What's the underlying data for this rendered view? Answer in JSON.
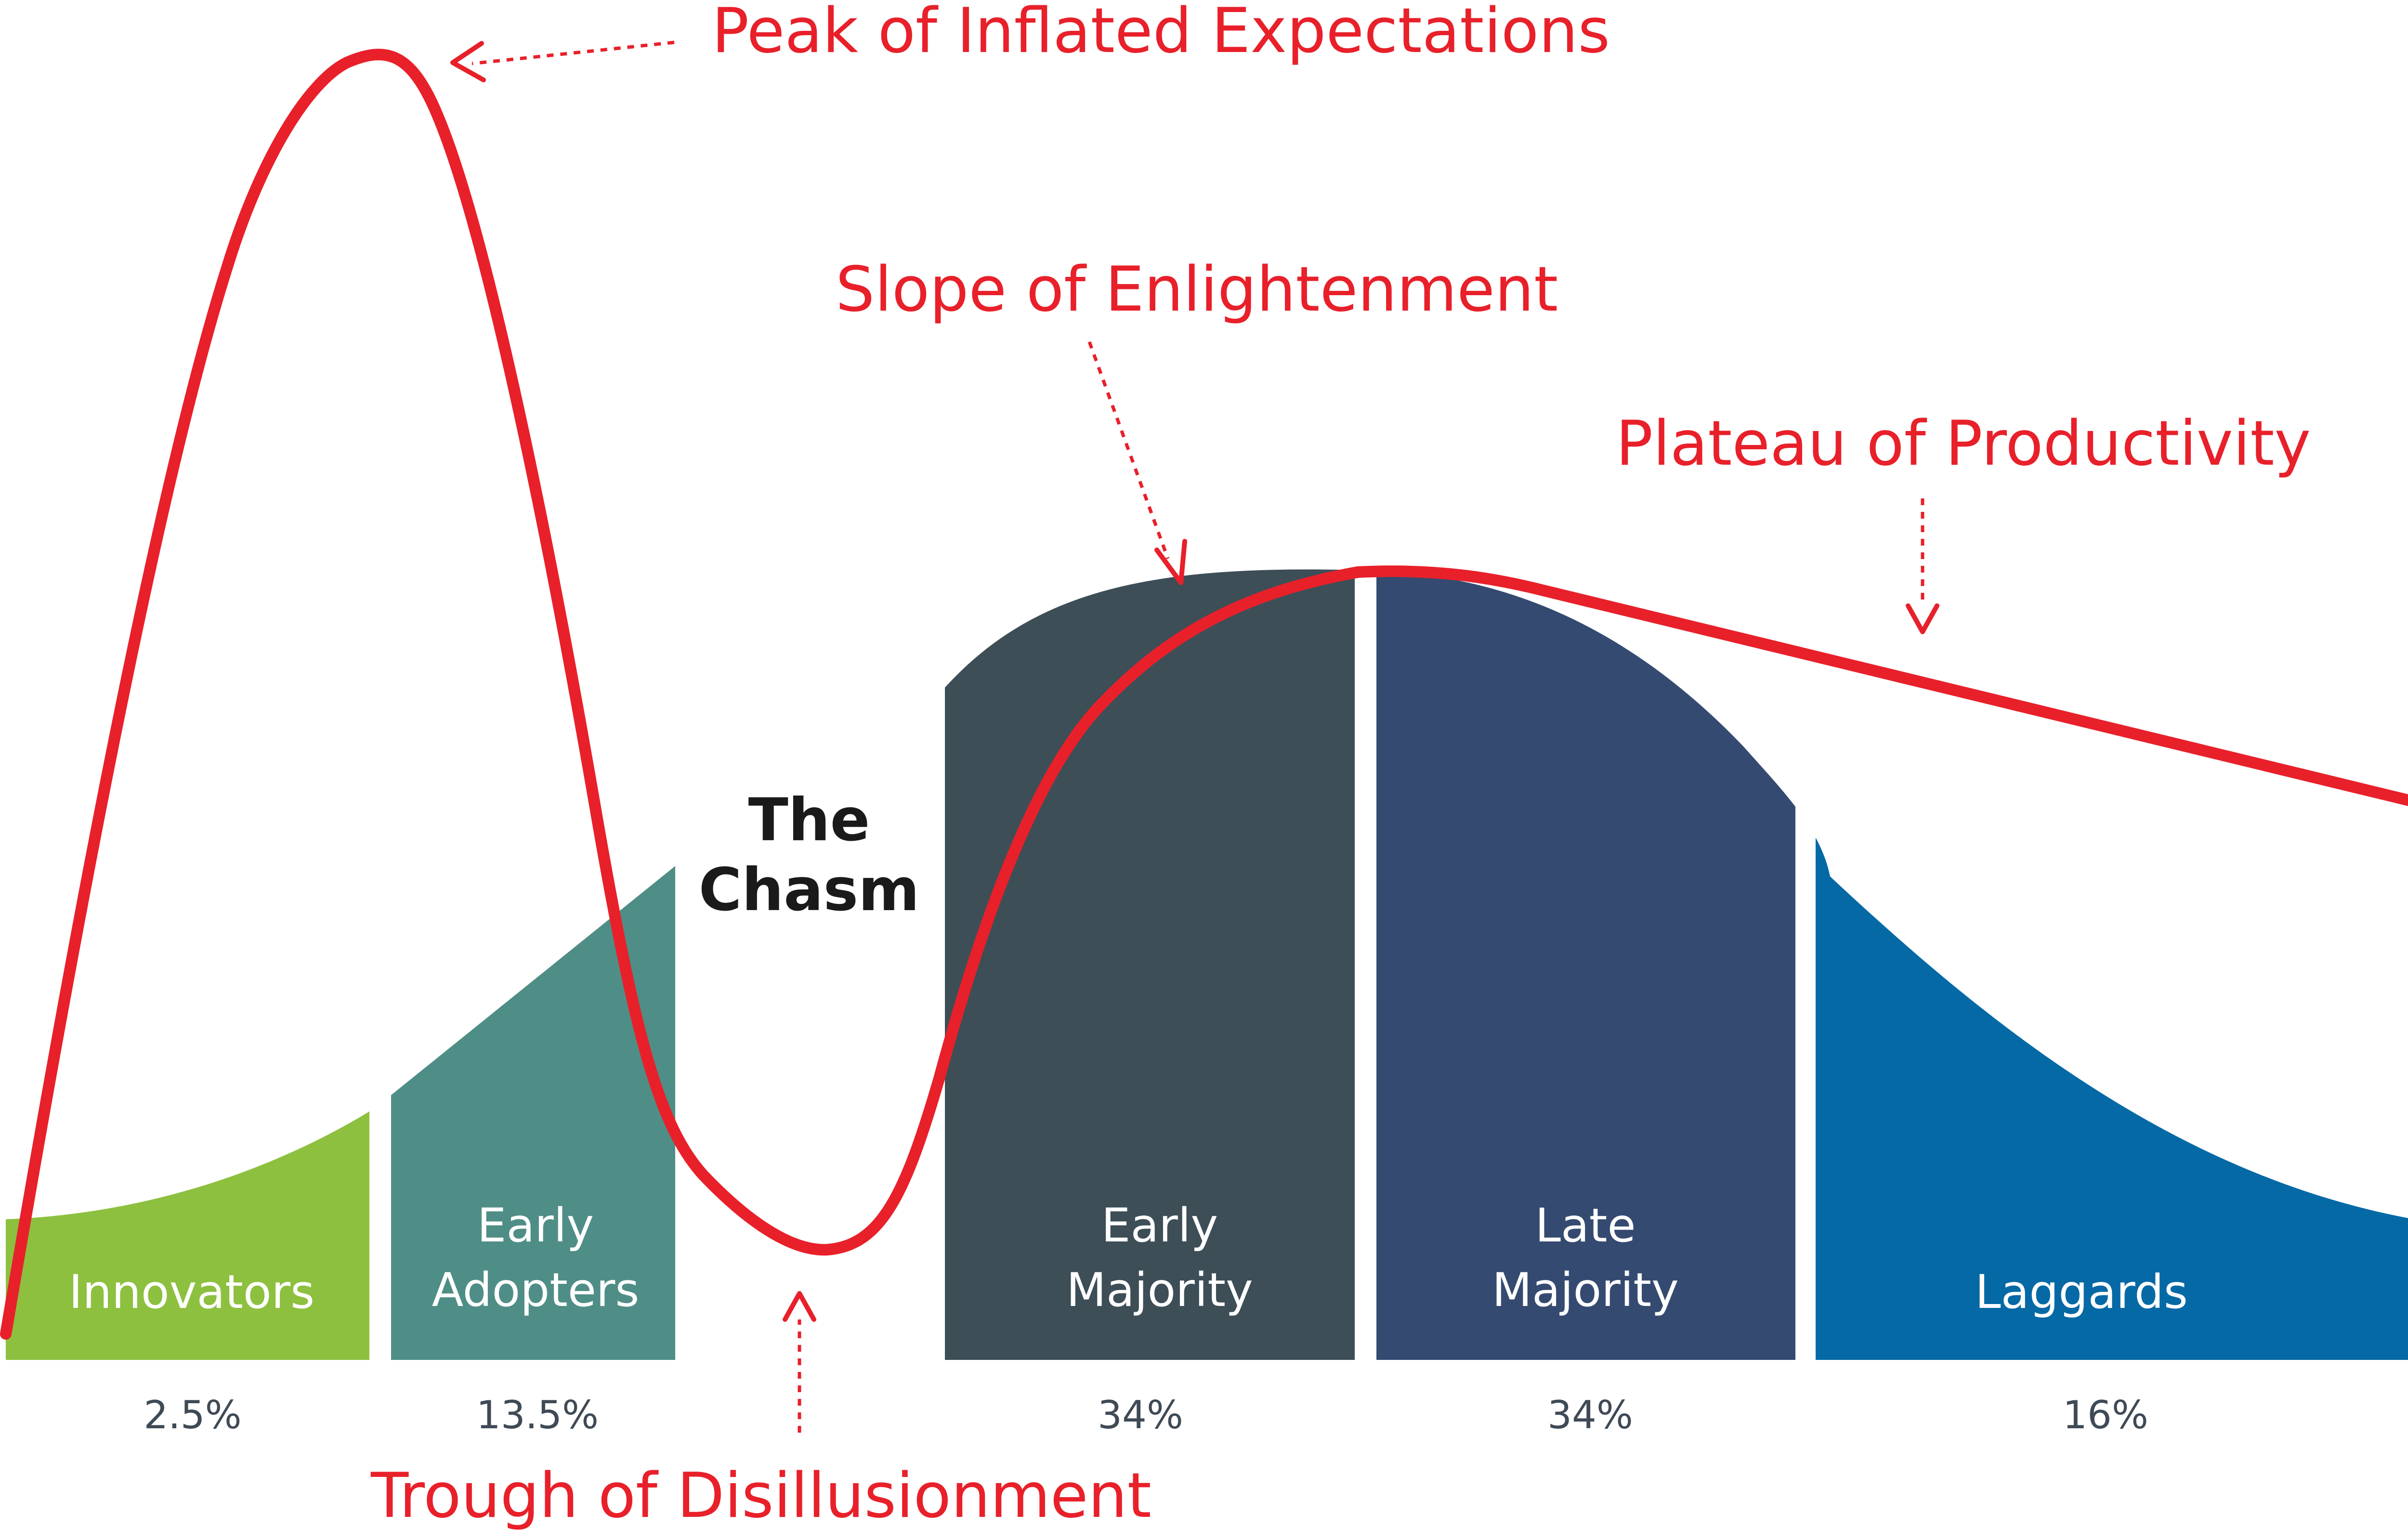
{
  "colors": {
    "innovators": "#8dc03f",
    "early_adopters": "#4f8e86",
    "early_majority": "#3d4e57",
    "late_majority": "#354a70",
    "laggards": "#0569a6",
    "hype_curve": "#e8202a",
    "chasm_text": "#1a1a1a",
    "percent_text": "#3e4a55"
  },
  "adoption_segments": [
    {
      "name": "Innovators",
      "line1": "",
      "line2": "Innovators",
      "share": "2.5%"
    },
    {
      "name": "Early Adopters",
      "line1": "Early",
      "line2": "Adopters",
      "share": "13.5%"
    },
    {
      "name": "Early Majority",
      "line1": "Early",
      "line2": "Majority",
      "share": "34%"
    },
    {
      "name": "Late Majority",
      "line1": "Late",
      "line2": "Majority",
      "share": "34%"
    },
    {
      "name": "Laggards",
      "line1": "",
      "line2": "Laggards",
      "share": "16%"
    }
  ],
  "chasm": {
    "line1": "The",
    "line2": "Chasm"
  },
  "hype_cycle": {
    "peak": "Peak of Inflated Expectations",
    "trough": "Trough of Disillusionment",
    "slope": "Slope of Enlightenment",
    "plateau": "Plateau of Productivity"
  }
}
